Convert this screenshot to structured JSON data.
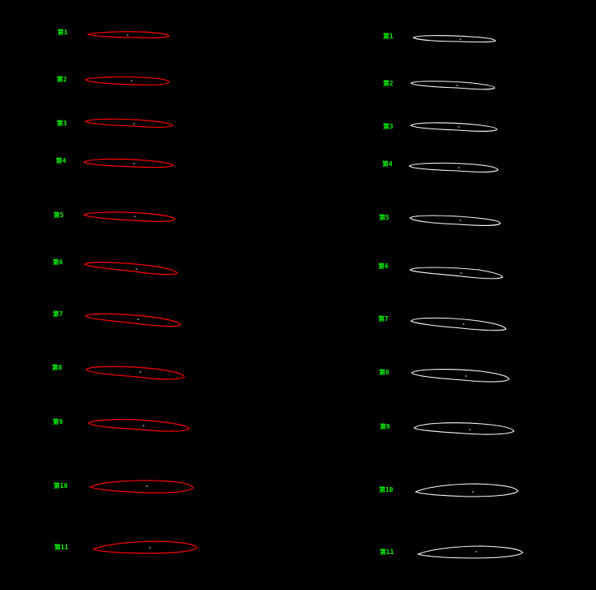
{
  "colors": {
    "background": "#000000",
    "label": "#00ff00",
    "left_outline": "#ff0000",
    "right_outline": "#ffffff"
  },
  "columns": {
    "left": {
      "rows": [
        {
          "label": "第1"
        },
        {
          "label": "第2"
        },
        {
          "label": "第3"
        },
        {
          "label": "第4"
        },
        {
          "label": "第5"
        },
        {
          "label": "第6"
        },
        {
          "label": "第7"
        },
        {
          "label": "第8"
        },
        {
          "label": "第9"
        },
        {
          "label": "第10"
        },
        {
          "label": "第11"
        }
      ]
    },
    "right": {
      "rows": [
        {
          "label": "第1"
        },
        {
          "label": "第2"
        },
        {
          "label": "第3"
        },
        {
          "label": "第4"
        },
        {
          "label": "第5"
        },
        {
          "label": "第6"
        },
        {
          "label": "第7"
        },
        {
          "label": "第8"
        },
        {
          "label": "第9"
        },
        {
          "label": "第10"
        },
        {
          "label": "第11"
        }
      ]
    }
  }
}
